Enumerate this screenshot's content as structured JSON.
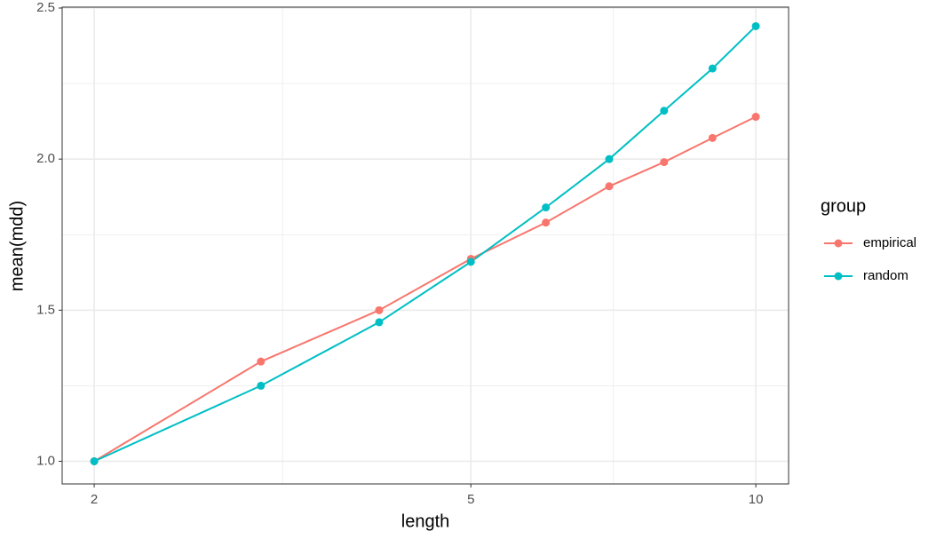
{
  "chart_data": {
    "type": "line",
    "x": [
      2,
      3,
      4,
      5,
      6,
      7,
      8,
      9,
      10
    ],
    "series": [
      {
        "name": "empirical",
        "color": "#F8766D",
        "values": [
          1.0,
          1.33,
          1.5,
          1.67,
          1.79,
          1.91,
          1.99,
          2.07,
          2.14
        ]
      },
      {
        "name": "random",
        "color": "#00BFC4",
        "values": [
          1.0,
          1.25,
          1.46,
          1.66,
          1.84,
          2.0,
          2.16,
          2.3,
          2.44
        ]
      }
    ],
    "x_label": "length",
    "y_label": "mean(mdd)",
    "legend_title": "group",
    "xlim": [
      1.85,
      10.83
    ],
    "xticks": [
      2,
      5,
      10
    ],
    "xscale": "log",
    "ylim": [
      0.925,
      2.503
    ],
    "yticks": [
      {
        "value": 1,
        "label": "1.0"
      },
      1.5,
      {
        "value": 2,
        "label": "2.0"
      },
      2.5
    ],
    "grid": true,
    "legend_position": "right"
  }
}
